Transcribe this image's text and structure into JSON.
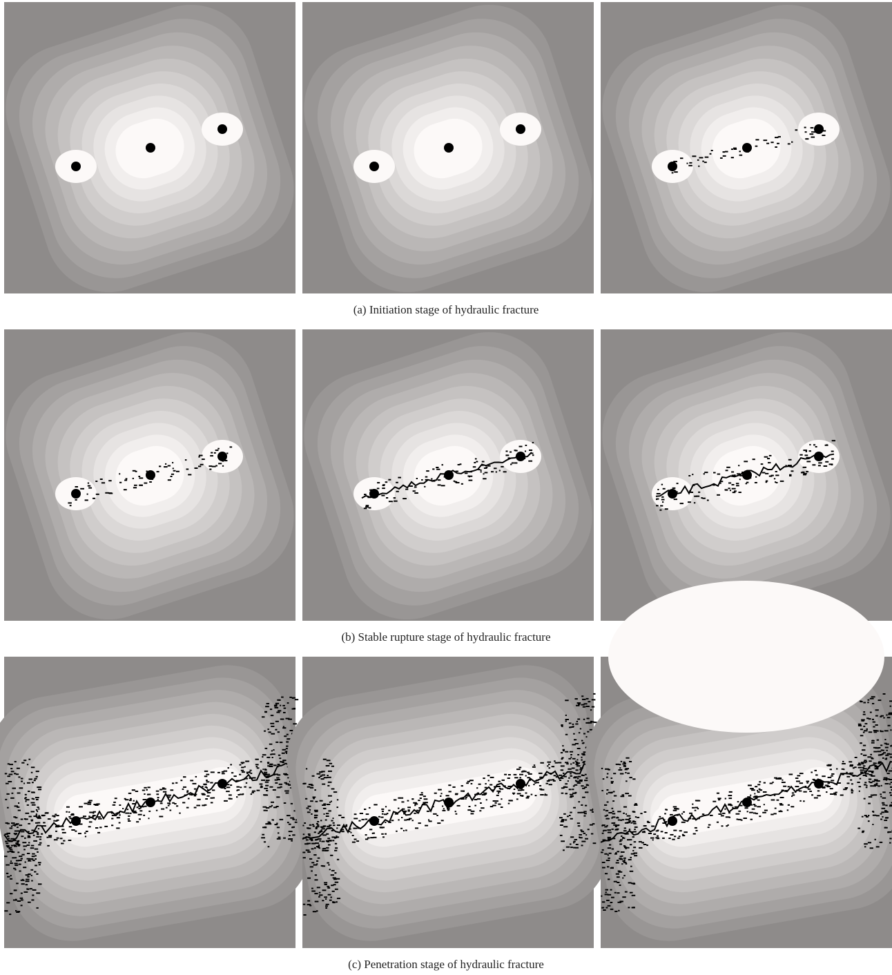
{
  "figure": {
    "rows": [
      {
        "caption": "(a) Initiation stage of hydraulic fracture"
      },
      {
        "caption": "(b) Stable rupture stage of hydraulic fracture"
      },
      {
        "caption": "(c) Penetration stage of hydraulic fracture"
      }
    ]
  }
}
